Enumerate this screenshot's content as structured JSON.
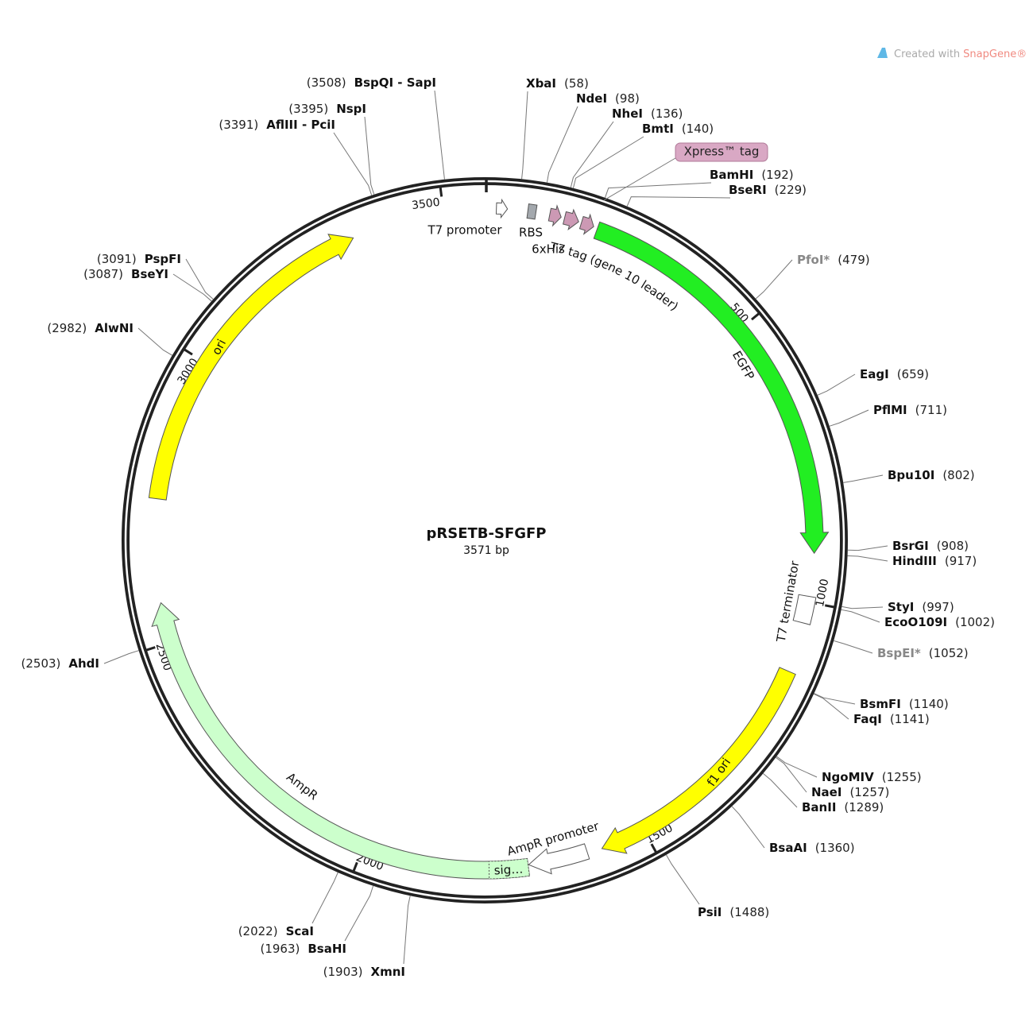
{
  "watermark": {
    "prefix": "Created with",
    "brand": "SnapGene®"
  },
  "plasmid": {
    "name": "pRSETB-SFGFP",
    "length": 3571,
    "length_label": "3571 bp"
  },
  "ticks": [
    500,
    1000,
    1500,
    2000,
    2500,
    3000,
    3500
  ],
  "features": [
    {
      "name": "T7 promoter",
      "start": 20,
      "end": 39,
      "color": "#ffffff",
      "arrow": true
    },
    {
      "name": "RBS",
      "start": 74,
      "end": 88,
      "color": "#a3a8ad",
      "arrow": false
    },
    {
      "name": "6xHis",
      "start": 112,
      "end": 132,
      "color": "#cc99b4",
      "arrow": true
    },
    {
      "name": "T7 tag (gene 10 leader)",
      "start": 138,
      "end": 163,
      "color": "#cc99b4",
      "arrow": true
    },
    {
      "name": "Xpress™ tag",
      "start": 168,
      "end": 190,
      "color": "#cc99b4",
      "arrow": true
    },
    {
      "name": "EGFP",
      "start": 197,
      "end": 915,
      "color": "#22ee22",
      "arrow": true
    },
    {
      "name": "T7 terminator",
      "start": 990,
      "end": 1037,
      "color": "#ffffff",
      "arrow": false
    },
    {
      "name": "f1 ori",
      "start": 1124,
      "end": 1579,
      "color": "#ffff00",
      "arrow": true
    },
    {
      "name": "AmpR promoter",
      "start": 1605,
      "end": 1709,
      "color": "#ffffff",
      "arrow": true
    },
    {
      "name": "sig…",
      "start": 1710,
      "end": 1778,
      "color": "#ccffcc",
      "arrow": false
    },
    {
      "name": "AmpR",
      "start": 1710,
      "end": 2570,
      "color": "#ccffcc",
      "arrow": true
    },
    {
      "name": "ori",
      "start": 2750,
      "end": 3338,
      "color": "#ffff00",
      "arrow": true
    }
  ],
  "sites": [
    {
      "name": "XbaI",
      "position": 58,
      "position_label": "(58)"
    },
    {
      "name": "NdeI",
      "position": 98,
      "position_label": "(98)"
    },
    {
      "name": "NheI",
      "position": 136,
      "position_label": "(136)"
    },
    {
      "name": "BmtI",
      "position": 140,
      "position_label": "(140)"
    },
    {
      "name": "BamHI",
      "position": 192,
      "position_label": "(192)"
    },
    {
      "name": "BseRI",
      "position": 229,
      "position_label": "(229)"
    },
    {
      "name": "PfoI*",
      "position": 479,
      "position_label": "(479)",
      "color": "#888888"
    },
    {
      "name": "EagI",
      "position": 659,
      "position_label": "(659)"
    },
    {
      "name": "PflMI",
      "position": 711,
      "position_label": "(711)"
    },
    {
      "name": "Bpu10I",
      "position": 802,
      "position_label": "(802)"
    },
    {
      "name": "BsrGI",
      "position": 908,
      "position_label": "(908)"
    },
    {
      "name": "HindIII",
      "position": 917,
      "position_label": "(917)"
    },
    {
      "name": "StyI",
      "position": 997,
      "position_label": "(997)"
    },
    {
      "name": "EcoO109I",
      "position": 1002,
      "position_label": "(1002)"
    },
    {
      "name": "BspEI*",
      "position": 1052,
      "position_label": "(1052)",
      "color": "#888888"
    },
    {
      "name": "BsmFI",
      "position": 1140,
      "position_label": "(1140)"
    },
    {
      "name": "FaqI",
      "position": 1141,
      "position_label": "(1141)"
    },
    {
      "name": "NgoMIV",
      "position": 1255,
      "position_label": "(1255)"
    },
    {
      "name": "NaeI",
      "position": 1257,
      "position_label": "(1257)"
    },
    {
      "name": "BanII",
      "position": 1289,
      "position_label": "(1289)"
    },
    {
      "name": "BsaAI",
      "position": 1360,
      "position_label": "(1360)"
    },
    {
      "name": "PsiI",
      "position": 1488,
      "position_label": "(1488)"
    },
    {
      "name": "XmnI",
      "position": 1903,
      "position_label": "(1903)"
    },
    {
      "name": "BsaHI",
      "position": 1963,
      "position_label": "(1963)"
    },
    {
      "name": "ScaI",
      "position": 2022,
      "position_label": "(2022)"
    },
    {
      "name": "AhdI",
      "position": 2503,
      "position_label": "(2503)"
    },
    {
      "name": "AlwNI",
      "position": 2982,
      "position_label": "(2982)"
    },
    {
      "name": "BseYI",
      "position": 3087,
      "position_label": "(3087)"
    },
    {
      "name": "PspFI",
      "position": 3091,
      "position_label": "(3091)"
    },
    {
      "name": "AflIII - PciI",
      "position": 3391,
      "position_label": "(3391)"
    },
    {
      "name": "NspI",
      "position": 3395,
      "position_label": "(3395)"
    },
    {
      "name": "BspQI - SapI",
      "position": 3508,
      "position_label": "(3508)"
    }
  ]
}
